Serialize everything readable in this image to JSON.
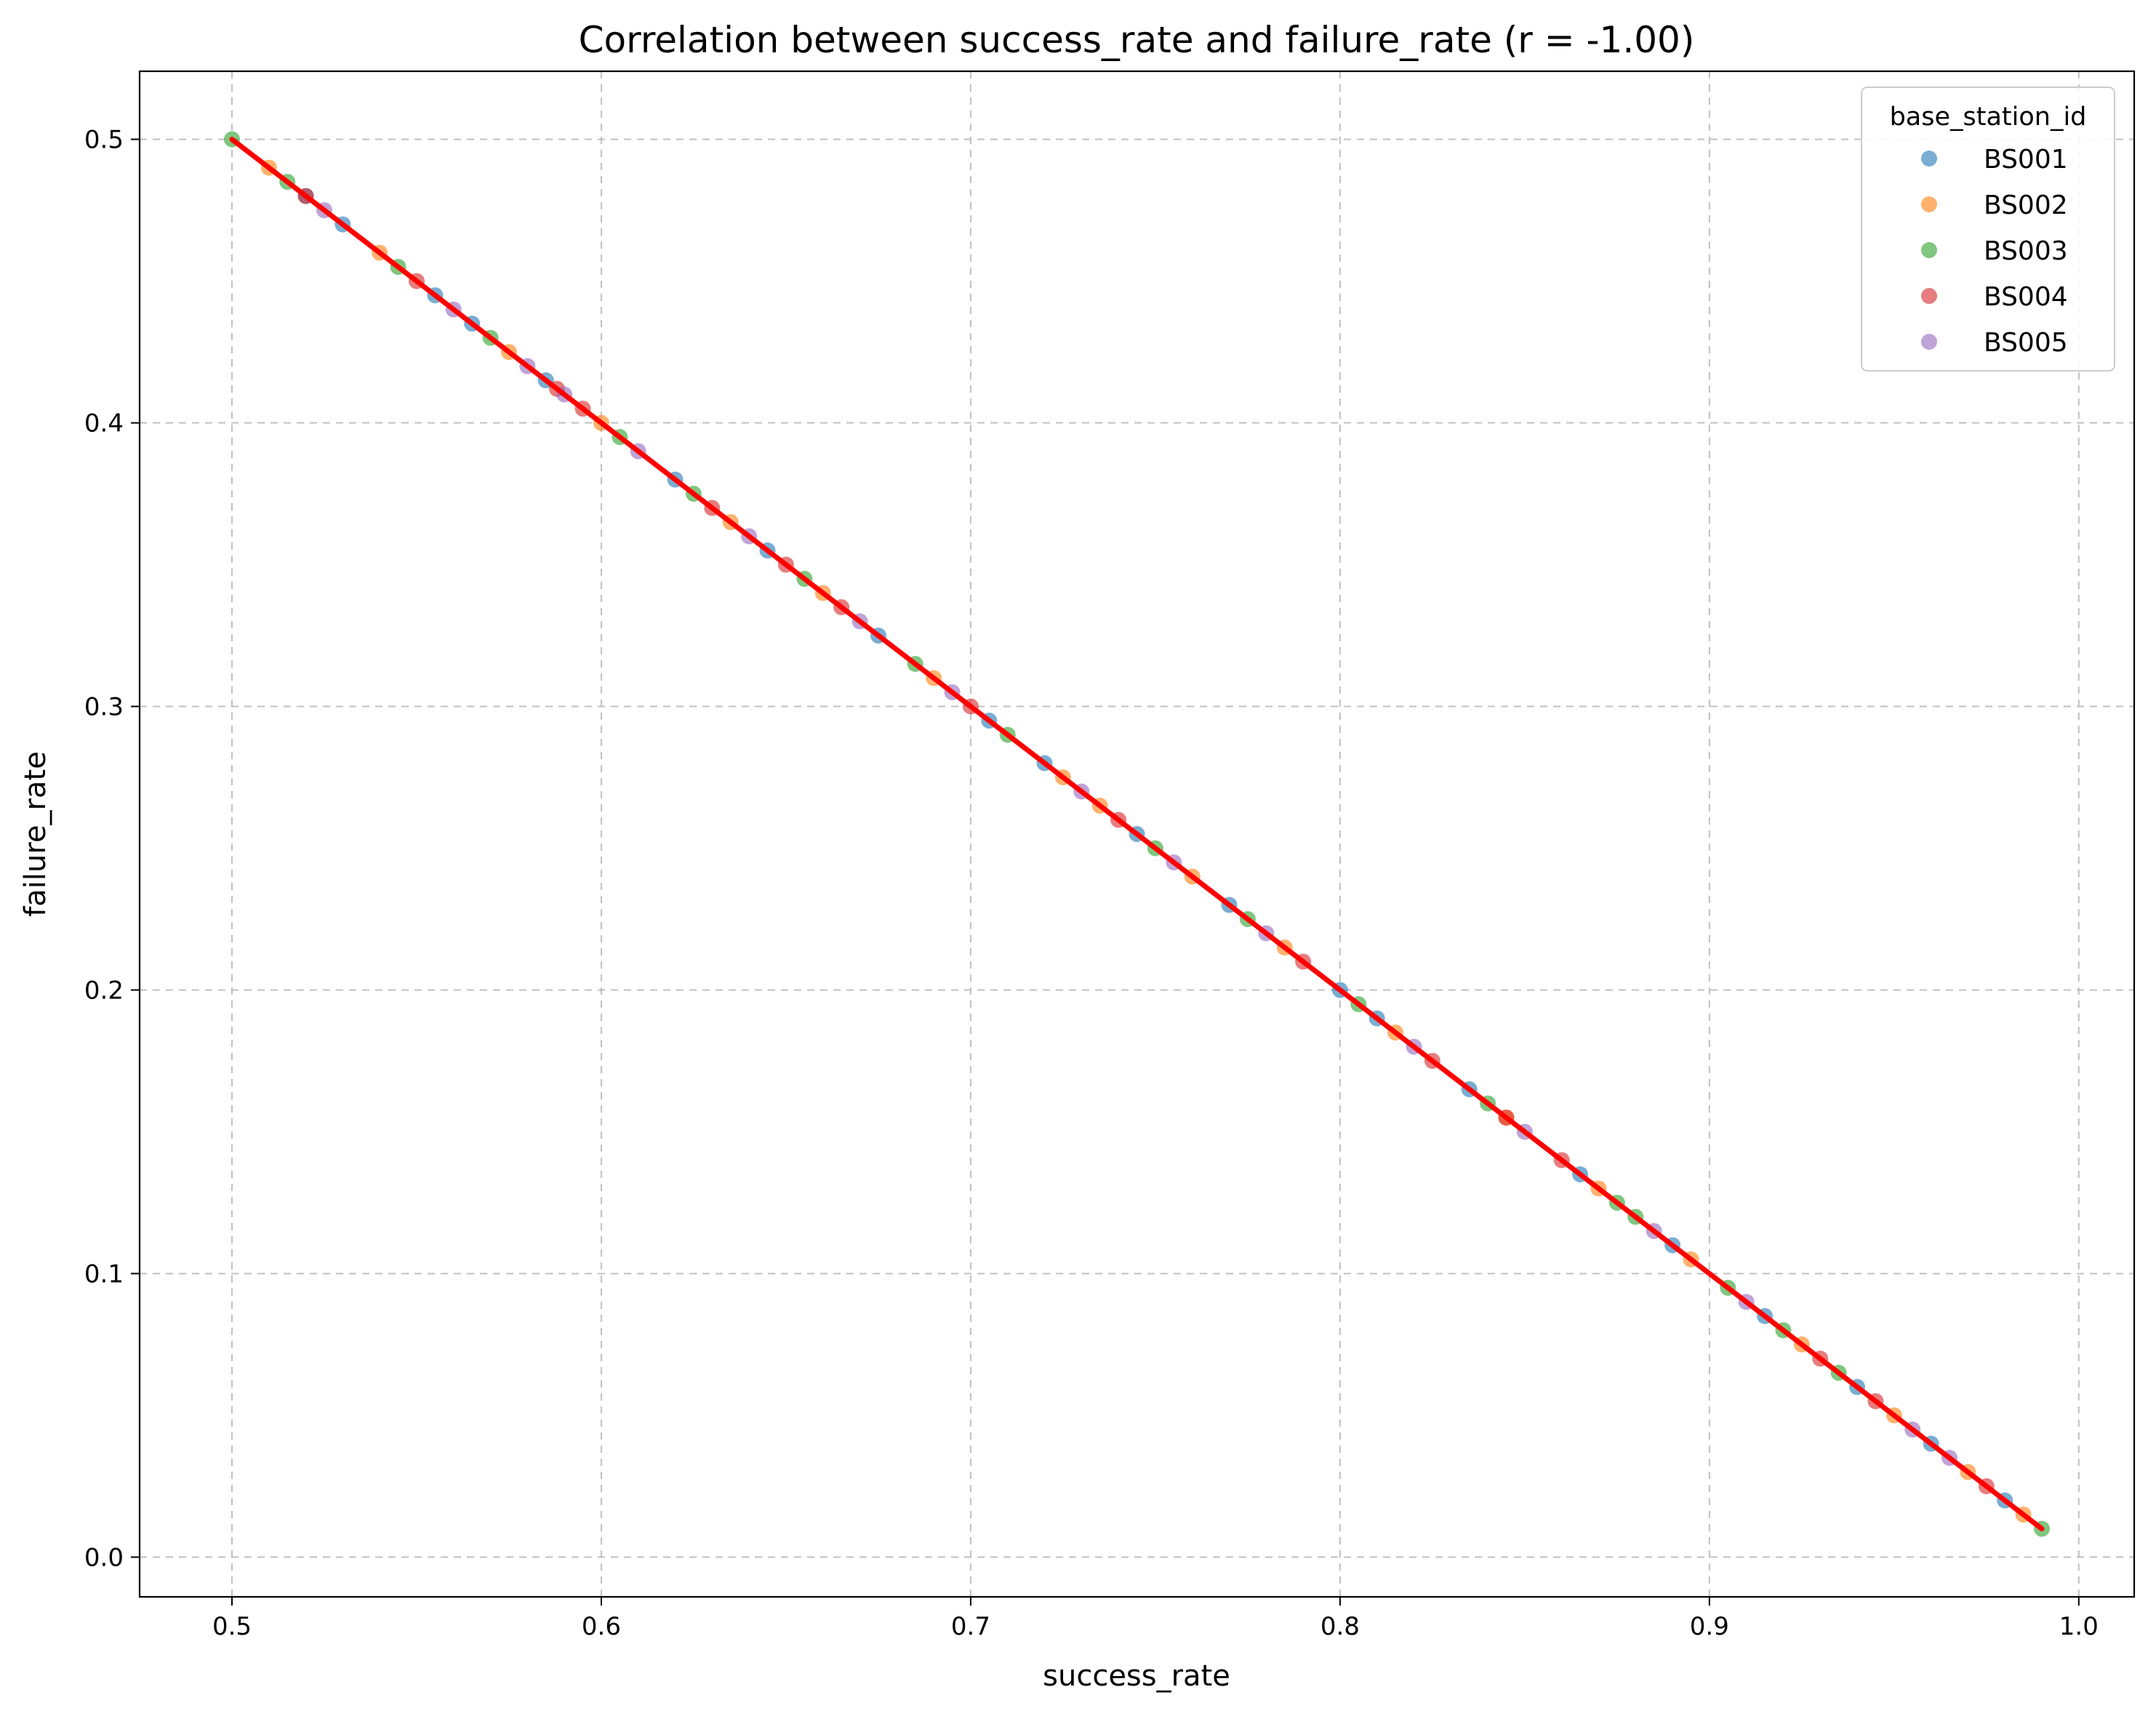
{
  "chart_data": {
    "type": "scatter",
    "title": "Correlation between success_rate and failure_rate (r = -1.00)",
    "xlabel": "success_rate",
    "ylabel": "failure_rate",
    "xlim": [
      0.475,
      1.015
    ],
    "ylim": [
      -0.014,
      0.524
    ],
    "xticks": [
      0.5,
      0.6,
      0.7,
      0.8,
      0.9,
      1.0
    ],
    "xtick_labels": [
      "0.5",
      "0.6",
      "0.7",
      "0.8",
      "0.9",
      "1.0"
    ],
    "yticks": [
      0.0,
      0.1,
      0.2,
      0.3,
      0.4,
      0.5
    ],
    "ytick_labels": [
      "0.0",
      "0.1",
      "0.2",
      "0.3",
      "0.4",
      "0.5"
    ],
    "grid": true,
    "legend": {
      "title": "base_station_id",
      "placement": "top-right"
    },
    "series": [
      {
        "name": "BS001",
        "color": "#1f77b4",
        "x": [
          0.52,
          0.53,
          0.555,
          0.565,
          0.585,
          0.62,
          0.645,
          0.675,
          0.705,
          0.72,
          0.745,
          0.77,
          0.8,
          0.81,
          0.835,
          0.865,
          0.89,
          0.915,
          0.94,
          0.96,
          0.98
        ],
        "y": [
          0.48,
          0.47,
          0.445,
          0.435,
          0.415,
          0.38,
          0.355,
          0.325,
          0.295,
          0.28,
          0.255,
          0.23,
          0.2,
          0.19,
          0.165,
          0.135,
          0.11,
          0.085,
          0.06,
          0.04,
          0.02
        ]
      },
      {
        "name": "BS002",
        "color": "#ff7f0e",
        "x": [
          0.51,
          0.54,
          0.575,
          0.6,
          0.635,
          0.66,
          0.69,
          0.725,
          0.735,
          0.76,
          0.785,
          0.815,
          0.845,
          0.87,
          0.895,
          0.925,
          0.95,
          0.97,
          0.985
        ],
        "y": [
          0.49,
          0.46,
          0.425,
          0.4,
          0.365,
          0.34,
          0.31,
          0.275,
          0.265,
          0.24,
          0.215,
          0.185,
          0.155,
          0.13,
          0.105,
          0.075,
          0.05,
          0.03,
          0.015
        ]
      },
      {
        "name": "BS003",
        "color": "#2ca02c",
        "x": [
          0.5,
          0.515,
          0.545,
          0.57,
          0.605,
          0.625,
          0.655,
          0.685,
          0.71,
          0.75,
          0.775,
          0.805,
          0.84,
          0.875,
          0.88,
          0.905,
          0.92,
          0.935,
          0.99
        ],
        "y": [
          0.5,
          0.485,
          0.455,
          0.43,
          0.395,
          0.375,
          0.345,
          0.315,
          0.29,
          0.25,
          0.225,
          0.195,
          0.16,
          0.125,
          0.12,
          0.095,
          0.08,
          0.065,
          0.01
        ]
      },
      {
        "name": "BS004",
        "color": "#d62728",
        "x": [
          0.52,
          0.55,
          0.588,
          0.595,
          0.63,
          0.65,
          0.665,
          0.7,
          0.74,
          0.79,
          0.825,
          0.845,
          0.86,
          0.93,
          0.945,
          0.975
        ],
        "y": [
          0.48,
          0.45,
          0.412,
          0.405,
          0.37,
          0.35,
          0.335,
          0.3,
          0.26,
          0.21,
          0.175,
          0.155,
          0.14,
          0.07,
          0.055,
          0.025
        ]
      },
      {
        "name": "BS005",
        "color": "#9467bd",
        "x": [
          0.525,
          0.56,
          0.58,
          0.59,
          0.61,
          0.64,
          0.67,
          0.695,
          0.73,
          0.755,
          0.78,
          0.82,
          0.85,
          0.885,
          0.91,
          0.955,
          0.965
        ],
        "y": [
          0.475,
          0.44,
          0.42,
          0.41,
          0.39,
          0.36,
          0.33,
          0.305,
          0.27,
          0.245,
          0.22,
          0.18,
          0.15,
          0.115,
          0.09,
          0.045,
          0.035
        ]
      }
    ],
    "regression_line": {
      "color": "#ff0000",
      "x": [
        0.5,
        0.99
      ],
      "y": [
        0.5,
        0.01
      ]
    }
  }
}
